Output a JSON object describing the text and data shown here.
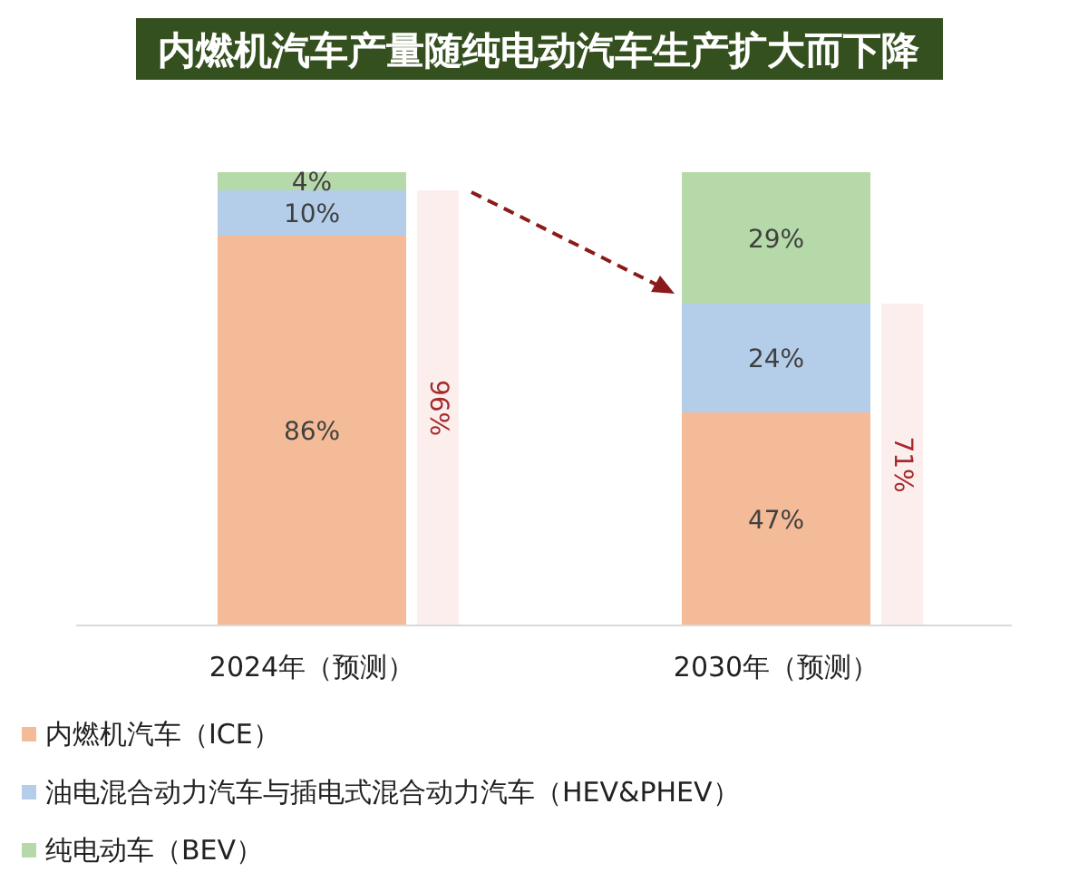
{
  "chart_data": [
    {
      "type": "bar",
      "title": "内燃机汽车产量随纯电动汽车生产扩大而下降",
      "categories": [
        "2024年（预测）",
        "2030年（预测）"
      ],
      "stacked": true,
      "legend": "bottom",
      "series": [
        {
          "name": "内燃机汽车（ICE）",
          "color": "#f4bb98",
          "values": [
            86,
            47
          ],
          "value_labels": [
            "86%",
            "47%"
          ]
        },
        {
          "name": "油电混合动力汽车与插电式混合动力汽车（HEV&PHEV）",
          "color": "#b4cde9",
          "values": [
            10,
            24
          ],
          "value_labels": [
            "10%",
            "24%"
          ]
        },
        {
          "name": "纯电动车（BEV）",
          "color": "#b5d9a8",
          "values": [
            4,
            29
          ],
          "value_labels": [
            "4%",
            "29%"
          ]
        }
      ]
    },
    {
      "type": "bar",
      "categories": [
        null,
        null
      ],
      "series": [
        {
          "color": "#fdeeee",
          "values": [
            96,
            71
          ],
          "value_labels": [
            "96%",
            "71%"
          ]
        }
      ]
    }
  ]
}
